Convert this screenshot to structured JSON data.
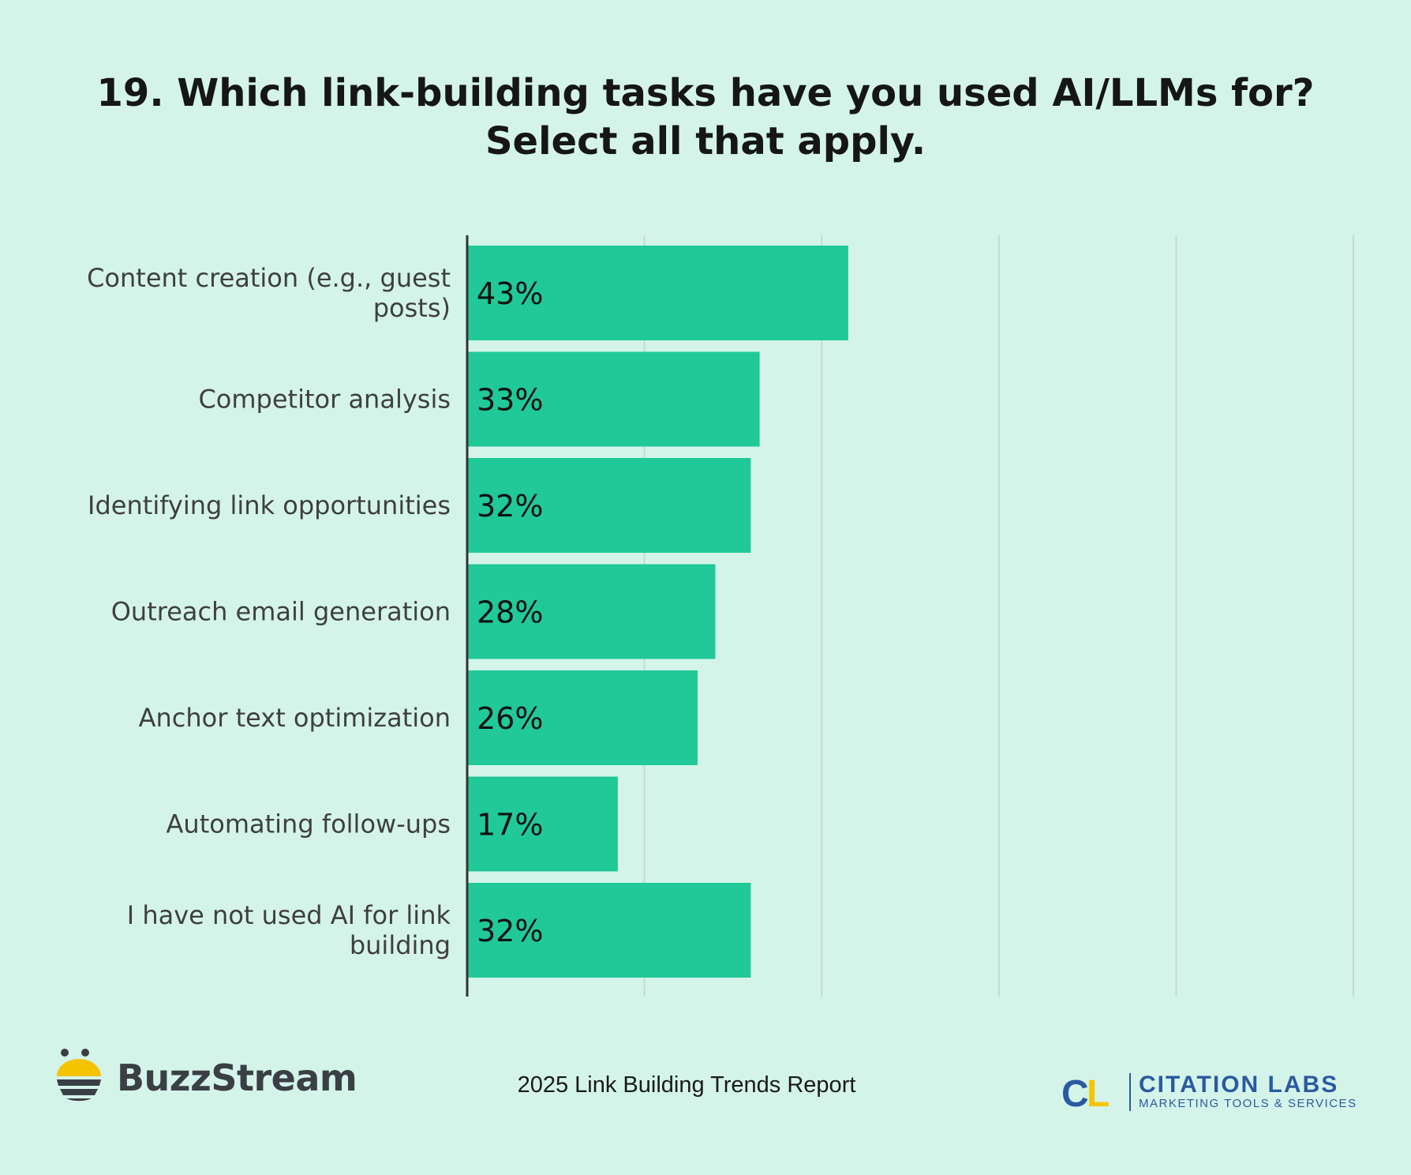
{
  "chart_data": {
    "type": "bar",
    "orientation": "horizontal",
    "title": "19. Which link-building tasks have you used AI/LLMs for? Select all that apply.",
    "categories": [
      "Content creation (e.g., guest posts)",
      "Competitor analysis",
      "Identifying link opportunities",
      "Outreach email generation",
      "Anchor text optimization",
      "Automating follow-ups",
      "I have not used AI for link building"
    ],
    "values": [
      43,
      33,
      32,
      28,
      26,
      17,
      32
    ],
    "value_labels": [
      "43%",
      "33%",
      "32%",
      "28%",
      "26%",
      "17%",
      "32%"
    ],
    "xlabel": "",
    "ylabel": "",
    "xlim": [
      0,
      100
    ],
    "grid": true,
    "legend": "none",
    "bar_color": "#20c997"
  },
  "footer": {
    "brand_left": "BuzzStream",
    "report_name": "2025 Link Building Trends Report",
    "brand_right_mark": "CL",
    "brand_right_name": "CITATION LABS",
    "brand_right_tagline": "MARKETING TOOLS & SERVICES"
  },
  "colors": {
    "background": "#d4f4ea",
    "bar": "#20c997",
    "gridline": "#c2dcd3",
    "axis": "#333333",
    "buzz_yellow": "#f5c400",
    "cl_blue": "#2a5aa0",
    "cl_yellow": "#f5c400"
  }
}
